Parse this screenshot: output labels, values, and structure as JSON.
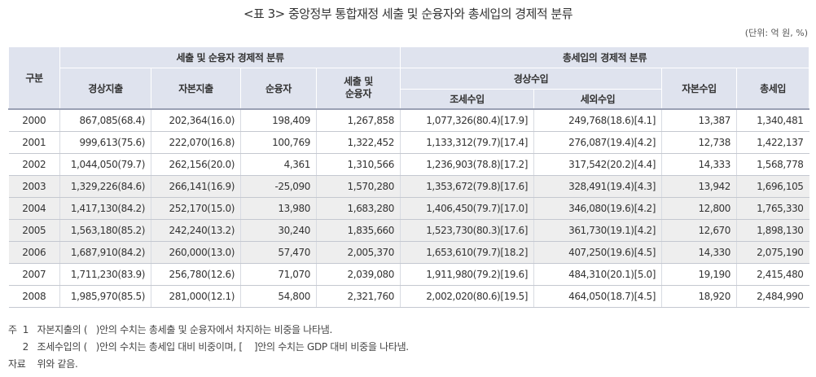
{
  "title": "<표 3> 중앙정부 통합재정 세출 및 순융자와 총세입의 경제적 분류",
  "unit": "(단위: 억 원, %)",
  "headers": {
    "year": "구분",
    "group1": "세출 및 순융자 경제적 분류",
    "group2": "총세입의 경제적 분류",
    "current_exp": "경상지출",
    "capital_exp": "자본지출",
    "net_lending": "순융자",
    "total_exp_line1": "세출 및",
    "total_exp_line2": "순융자",
    "current_rev": "경상수입",
    "tax_rev": "조세수입",
    "nontax_rev": "세외수입",
    "capital_rev": "자본수입",
    "total_rev": "총세입"
  },
  "rows": [
    {
      "year": "2000",
      "c1": "867,085(68.4)",
      "c2": "202,364(16.0)",
      "c3": "198,409",
      "c4": "1,267,858",
      "c5": "1,077,326(80.4)[17.9]",
      "c6": "249,768(18.6)[4.1]",
      "c7": "13,387",
      "c8": "1,340,481"
    },
    {
      "year": "2001",
      "c1": "999,613(75.6)",
      "c2": "222,070(16.8)",
      "c3": "100,769",
      "c4": "1,322,452",
      "c5": "1,133,312(79.7)[17.4]",
      "c6": "276,087(19.4)[4.2]",
      "c7": "12,738",
      "c8": "1,422,137"
    },
    {
      "year": "2002",
      "c1": "1,044,050(79.7)",
      "c2": "262,156(20.0)",
      "c3": "4,361",
      "c4": "1,310,566",
      "c5": "1,236,903(78.8)[17.2]",
      "c6": "317,542(20.2)[4.4]",
      "c7": "14,333",
      "c8": "1,568,778"
    },
    {
      "year": "2003",
      "c1": "1,329,226(84.6)",
      "c2": "266,141(16.9)",
      "c3": "-25,090",
      "c4": "1,570,280",
      "c5": "1,353,672(79.8)[17.6]",
      "c6": "328,491(19.4)[4.3]",
      "c7": "13,942",
      "c8": "1,696,105"
    },
    {
      "year": "2004",
      "c1": "1,417,130(84.2)",
      "c2": "252,170(15.0)",
      "c3": "13,980",
      "c4": "1,683,280",
      "c5": "1,406,450(79.7)[17.0]",
      "c6": "346,080(19.6)[4.2]",
      "c7": "12,800",
      "c8": "1,765,330"
    },
    {
      "year": "2005",
      "c1": "1,563,180(85.2)",
      "c2": "242,240(13.2)",
      "c3": "30,240",
      "c4": "1,835,660",
      "c5": "1,523,730(80.3)[17.6]",
      "c6": "361,730(19.1)[4.2]",
      "c7": "12,670",
      "c8": "1,898,130"
    },
    {
      "year": "2006",
      "c1": "1,687,910(84.2)",
      "c2": "260,000(13.0)",
      "c3": "57,470",
      "c4": "2,005,370",
      "c5": "1,653,610(79.7)[18.2]",
      "c6": "407,250(19.6)[4.5]",
      "c7": "14,330",
      "c8": "2,075,190"
    },
    {
      "year": "2007",
      "c1": "1,711,230(83.9)",
      "c2": "256,780(12.6)",
      "c3": "71,070",
      "c4": "2,039,080",
      "c5": "1,911,980(79.2)[19.6]",
      "c6": "484,310(20.1)[5.0]",
      "c7": "19,190",
      "c8": "2,415,480"
    },
    {
      "year": "2008",
      "c1": "1,985,970(85.5)",
      "c2": "281,000(12.1)",
      "c3": "54,800",
      "c4": "2,321,760",
      "c5": "2,002,020(80.6)[19.5]",
      "c6": "464,050(18.7)[4.5]",
      "c7": "18,920",
      "c8": "2,484,990"
    }
  ],
  "notes": [
    "주  1   자본지출의 (   )안의 수치는 총세출 및 순융자에서 차지하는 비중을 나타냄.",
    "     2   조세수입의 (   )안의 수치는 총세입 대비 비중이며, [    ]안의 수치는 GDP 대비 비중을 나타냄.",
    "자료    위와 같음."
  ],
  "colors": {
    "header_bg": "#dfe3ee",
    "shaded_row_bg": "#eeeeee",
    "grid_line": "#c4c8d0"
  }
}
